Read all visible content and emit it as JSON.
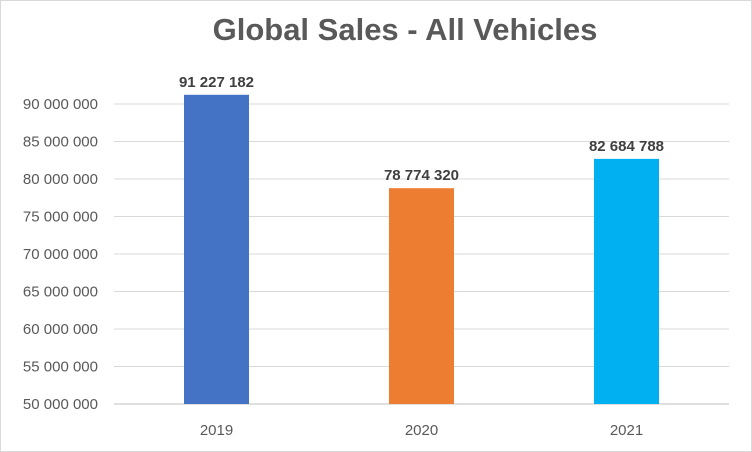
{
  "chart_data": {
    "type": "bar",
    "title": "Global Sales - All Vehicles",
    "categories": [
      "2019",
      "2020",
      "2021"
    ],
    "values": [
      91227182,
      78774320,
      82684788
    ],
    "data_labels": [
      "91 227 182",
      "78 774 320",
      "82 684 788"
    ],
    "colors": [
      "#4472c4",
      "#ed7d31",
      "#00b0f0"
    ],
    "ylim": [
      50000000,
      90000000
    ],
    "y_ticks": [
      50000000,
      55000000,
      60000000,
      65000000,
      70000000,
      75000000,
      80000000,
      85000000,
      90000000
    ],
    "y_tick_labels": [
      "50 000 000",
      "55 000 000",
      "60 000 000",
      "65 000 000",
      "70 000 000",
      "75 000 000",
      "80 000 000",
      "85 000 000",
      "90 000 000"
    ],
    "grid": true,
    "legend": "none",
    "xlabel": "",
    "ylabel": ""
  }
}
